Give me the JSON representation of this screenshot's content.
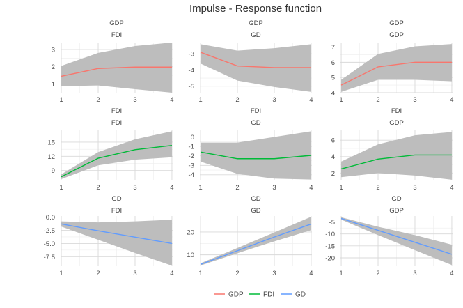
{
  "title": "Impulse - Response function",
  "legend": {
    "position": "bottom",
    "entries": [
      {
        "label": "GDP",
        "color": "#f8766d"
      },
      {
        "label": "FDI",
        "color": "#00ba38"
      },
      {
        "label": "GD",
        "color": "#619cff"
      }
    ]
  },
  "chart_data": [
    {
      "type": "line",
      "impulse": "GDP",
      "response": "FDI",
      "x": [
        1,
        2,
        3,
        4
      ],
      "xticks": [
        1,
        2,
        3,
        4
      ],
      "ylim": [
        0.5,
        3.4
      ],
      "yticks": [
        1,
        2,
        3
      ],
      "ytick_labels": [
        "1",
        "2",
        "3"
      ],
      "series": [
        {
          "name": "GDP",
          "color": "#f8766d",
          "values": [
            1.45,
            1.9,
            1.98,
            1.98
          ],
          "lower": [
            0.88,
            0.92,
            0.7,
            0.5
          ],
          "upper": [
            2.05,
            2.8,
            3.2,
            3.4
          ]
        }
      ]
    },
    {
      "type": "line",
      "impulse": "GDP",
      "response": "GD",
      "x": [
        1,
        2,
        3,
        4
      ],
      "xticks": [
        1,
        2,
        3,
        4
      ],
      "ylim": [
        -5.4,
        -2.3
      ],
      "yticks": [
        -5,
        -4,
        -3
      ],
      "ytick_labels": [
        "-5",
        "-4",
        "-3"
      ],
      "series": [
        {
          "name": "GDP",
          "color": "#f8766d",
          "values": [
            -2.9,
            -3.75,
            -3.85,
            -3.85
          ],
          "lower": [
            -3.6,
            -4.65,
            -5.05,
            -5.35
          ],
          "upper": [
            -2.4,
            -2.8,
            -2.65,
            -2.4
          ]
        }
      ]
    },
    {
      "type": "line",
      "impulse": "GDP",
      "response": "GDP",
      "x": [
        1,
        2,
        3,
        4
      ],
      "xticks": [
        1,
        2,
        3,
        4
      ],
      "ylim": [
        4.0,
        7.3
      ],
      "yticks": [
        4,
        5,
        6,
        7
      ],
      "ytick_labels": [
        "4",
        "5",
        "6",
        "7"
      ],
      "series": [
        {
          "name": "GDP",
          "color": "#f8766d",
          "values": [
            4.5,
            5.7,
            6.0,
            6.0
          ],
          "lower": [
            4.05,
            4.85,
            4.85,
            4.75
          ],
          "upper": [
            4.85,
            6.55,
            7.05,
            7.2
          ]
        }
      ]
    },
    {
      "type": "line",
      "impulse": "FDI",
      "response": "FDI",
      "x": [
        1,
        2,
        3,
        4
      ],
      "xticks": [
        1,
        2,
        3,
        4
      ],
      "ylim": [
        6.9,
        17.5
      ],
      "yticks": [
        9,
        12,
        15
      ],
      "ytick_labels": [
        "9",
        "12",
        "15"
      ],
      "series": [
        {
          "name": "FDI",
          "color": "#00ba38",
          "values": [
            7.7,
            11.6,
            13.4,
            14.3
          ],
          "lower": [
            7.2,
            10.1,
            11.3,
            11.8
          ],
          "upper": [
            8.2,
            12.9,
            15.6,
            17.3
          ]
        }
      ]
    },
    {
      "type": "line",
      "impulse": "FDI",
      "response": "GD",
      "x": [
        1,
        2,
        3,
        4
      ],
      "xticks": [
        1,
        2,
        3,
        4
      ],
      "ylim": [
        -4.6,
        0.7
      ],
      "yticks": [
        -4,
        -3,
        -2,
        -1,
        0
      ],
      "ytick_labels": [
        "-4",
        "-3",
        "-2",
        "-1",
        "0"
      ],
      "series": [
        {
          "name": "FDI",
          "color": "#00ba38",
          "values": [
            -1.6,
            -2.3,
            -2.3,
            -1.95
          ],
          "lower": [
            -2.6,
            -3.9,
            -4.4,
            -4.5
          ],
          "upper": [
            -0.6,
            -0.6,
            0.0,
            0.6
          ]
        }
      ]
    },
    {
      "type": "line",
      "impulse": "FDI",
      "response": "GDP",
      "x": [
        1,
        2,
        3,
        4
      ],
      "xticks": [
        1,
        2,
        3,
        4
      ],
      "ylim": [
        1.1,
        7.2
      ],
      "yticks": [
        2,
        4,
        6
      ],
      "ytick_labels": [
        "2",
        "4",
        "6"
      ],
      "series": [
        {
          "name": "FDI",
          "color": "#00ba38",
          "values": [
            2.5,
            3.7,
            4.2,
            4.2
          ],
          "lower": [
            1.5,
            2.0,
            1.7,
            1.2
          ],
          "upper": [
            3.4,
            5.5,
            6.6,
            7.0
          ]
        }
      ]
    },
    {
      "type": "line",
      "impulse": "GD",
      "response": "FDI",
      "x": [
        1,
        2,
        3,
        4
      ],
      "xticks": [
        1,
        2,
        3,
        4
      ],
      "ylim": [
        -9.3,
        0.2
      ],
      "yticks": [
        0,
        -2.5,
        -5,
        -7.5
      ],
      "ytick_labels": [
        "0.0",
        "-2.5",
        "-5.0",
        "-7.5"
      ],
      "series": [
        {
          "name": "GD",
          "color": "#619cff",
          "values": [
            -1.3,
            -2.6,
            -3.8,
            -5.0
          ],
          "lower": [
            -1.8,
            -4.3,
            -6.8,
            -9.2
          ],
          "upper": [
            -0.8,
            -1.0,
            -0.8,
            -0.5
          ]
        }
      ]
    },
    {
      "type": "line",
      "impulse": "GD",
      "response": "GD",
      "x": [
        1,
        2,
        3,
        4
      ],
      "xticks": [
        1,
        2,
        3,
        4
      ],
      "ylim": [
        5.0,
        27.0
      ],
      "yticks": [
        10,
        20
      ],
      "ytick_labels": [
        "10",
        "20"
      ],
      "series": [
        {
          "name": "GD",
          "color": "#619cff",
          "values": [
            5.8,
            11.8,
            17.8,
            23.5
          ],
          "lower": [
            5.3,
            10.7,
            15.9,
            20.8
          ],
          "upper": [
            6.3,
            13.0,
            19.8,
            26.7
          ]
        }
      ]
    },
    {
      "type": "line",
      "impulse": "GD",
      "response": "GDP",
      "x": [
        1,
        2,
        3,
        4
      ],
      "xticks": [
        1,
        2,
        3,
        4
      ],
      "ylim": [
        -23.5,
        -2.5
      ],
      "yticks": [
        -5,
        -10,
        -15,
        -20
      ],
      "ytick_labels": [
        "-5",
        "-10",
        "-15",
        "-20"
      ],
      "series": [
        {
          "name": "GD",
          "color": "#619cff",
          "values": [
            -3.5,
            -8.5,
            -13.5,
            -18.5
          ],
          "lower": [
            -4.0,
            -10.5,
            -16.8,
            -23.0
          ],
          "upper": [
            -3.0,
            -7.0,
            -10.5,
            -14.5
          ]
        }
      ]
    }
  ]
}
